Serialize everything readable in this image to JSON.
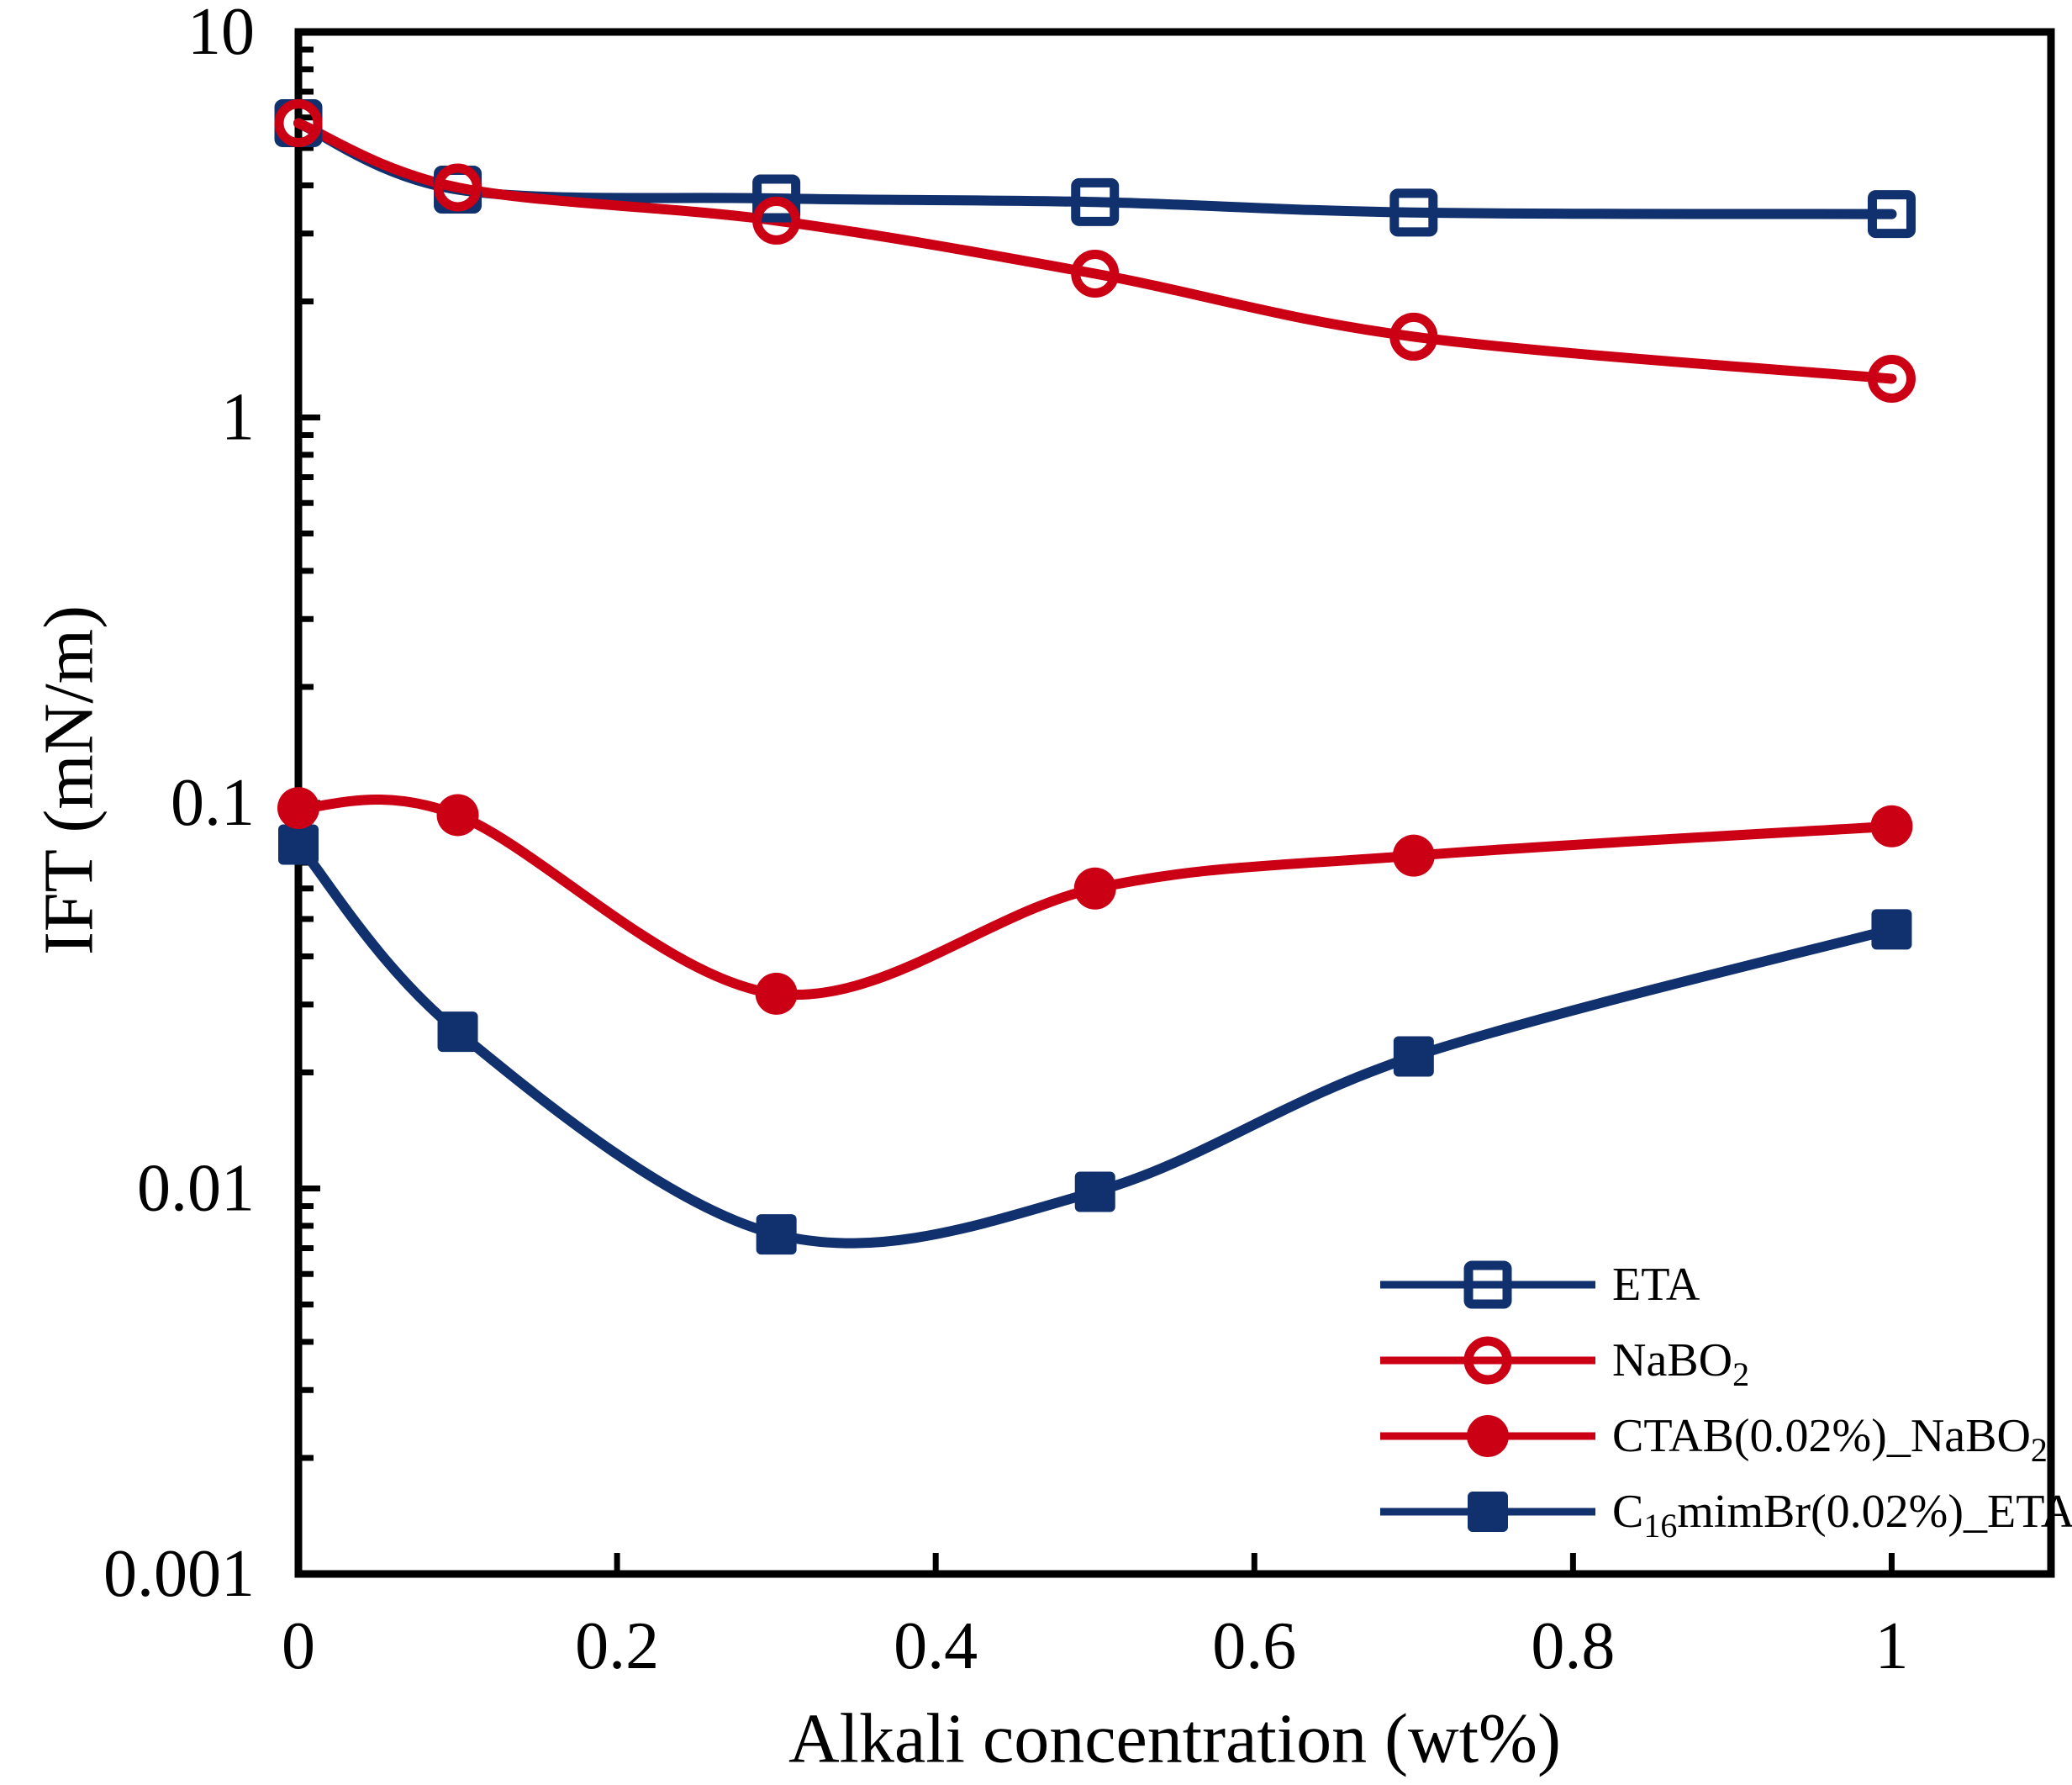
{
  "figure": {
    "background": "#ffffff",
    "frame_color": "#000000"
  },
  "colors": {
    "series_blue": "#11306E",
    "series_red": "#CB0015",
    "axis_black": "#000000"
  },
  "chart_data": {
    "type": "line",
    "title": "",
    "xlabel": "Alkali concentration (wt%)",
    "ylabel": "IFT (mN/m)",
    "x_scale": "linear",
    "y_scale": "log",
    "xlim": [
      0,
      1.1
    ],
    "ylim": [
      0.001,
      10
    ],
    "x_ticks": [
      0,
      0.2,
      0.4,
      0.6,
      0.8,
      1
    ],
    "x_tick_labels": [
      "0",
      "0.2",
      "0.4",
      "0.6",
      "0.8",
      "1"
    ],
    "y_ticks": [
      10,
      1,
      0.1,
      0.01,
      0.001
    ],
    "y_tick_labels": [
      "10",
      "1",
      "0.1",
      "0.01",
      "0.001"
    ],
    "grid": false,
    "legend_position": "lower-right",
    "x": [
      0,
      0.1,
      0.3,
      0.5,
      0.7,
      1
    ],
    "series": [
      {
        "name": "ETA",
        "label": "ETA",
        "display_parts": [
          {
            "t": "ETA"
          }
        ],
        "color": "#11306E",
        "marker": "open-square",
        "values": [
          5.8,
          3.9,
          3.7,
          3.62,
          3.4,
          3.37
        ]
      },
      {
        "name": "NaBO2",
        "label": "NaBO₂",
        "display_parts": [
          {
            "t": "NaBO"
          },
          {
            "t": "2",
            "sub": true
          }
        ],
        "color": "#CB0015",
        "marker": "open-circle",
        "values": [
          5.8,
          3.95,
          3.24,
          2.36,
          1.62,
          1.26
        ]
      },
      {
        "name": "CTAB(0.02%)_NaBO2",
        "label": "CTAB(0.02%)_NaBO₂",
        "display_parts": [
          {
            "t": "CTAB(0.02%)_NaBO"
          },
          {
            "t": "2",
            "sub": true
          }
        ],
        "color": "#CB0015",
        "marker": "filled-circle",
        "values": [
          0.097,
          0.093,
          0.032,
          0.06,
          0.073,
          0.087
        ]
      },
      {
        "name": "C16mimBr(0.02%)_ETA",
        "label": "C₁₆mimBr(0.02%)_ETA",
        "display_parts": [
          {
            "t": "C"
          },
          {
            "t": "16",
            "sub": true
          },
          {
            "t": "mimBr(0.02%)_ETA"
          }
        ],
        "color": "#11306E",
        "marker": "filled-square",
        "values": [
          0.078,
          0.0255,
          0.0076,
          0.0098,
          0.022,
          0.047
        ]
      }
    ]
  }
}
